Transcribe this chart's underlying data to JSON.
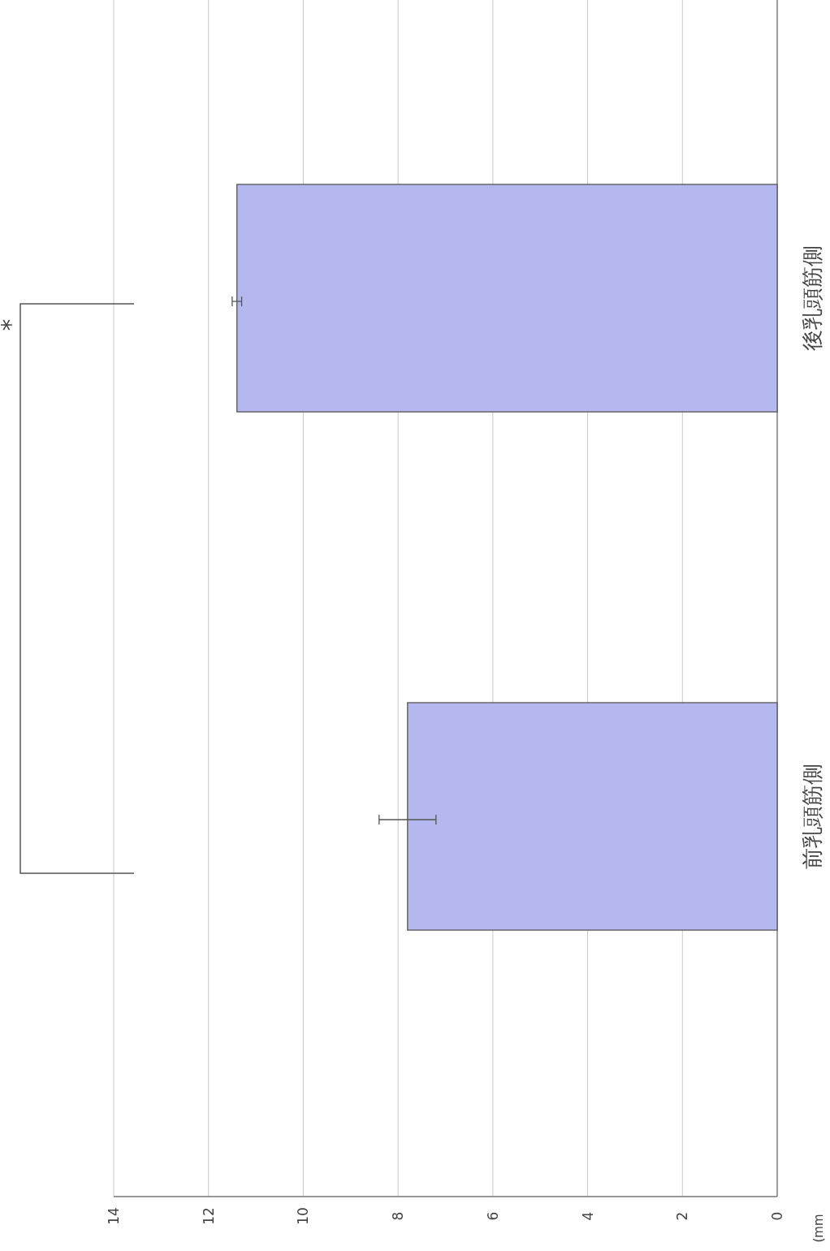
{
  "chart_data": {
    "type": "bar",
    "orientation": "horizontal",
    "categories": [
      "後乳頭筋側",
      "前乳頭筋側"
    ],
    "values": [
      11.4,
      7.8
    ],
    "errors": [
      0.1,
      0.6
    ],
    "color": "#b4b8ef",
    "xlim": [
      14,
      0
    ],
    "xticks": [
      14,
      12,
      10,
      8,
      6,
      4,
      2,
      0
    ],
    "grid": "x",
    "annotations": [
      "*",
      "(mm"
    ]
  }
}
